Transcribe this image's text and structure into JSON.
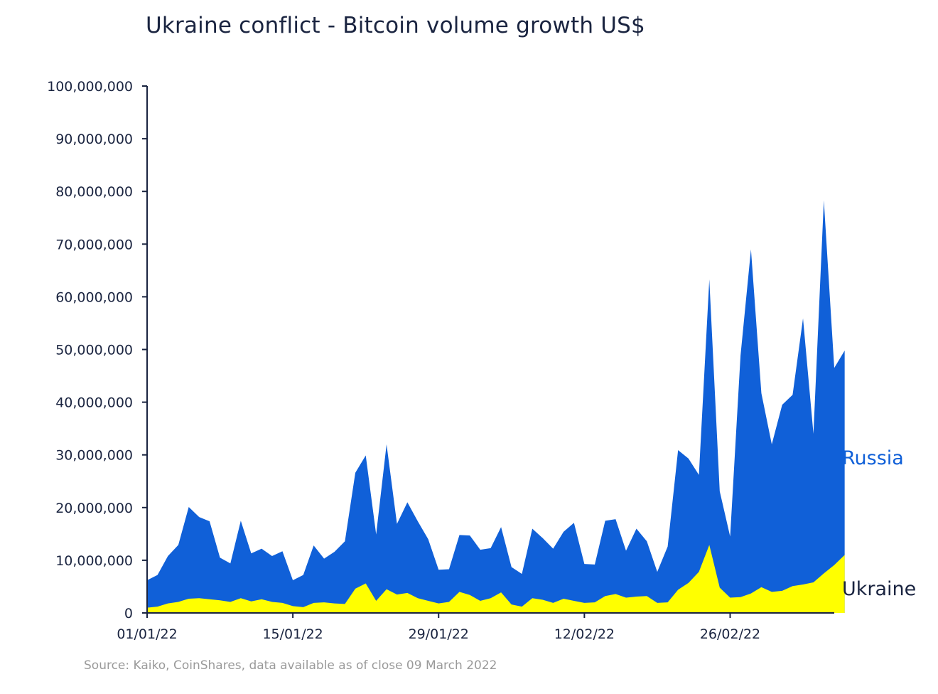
{
  "title": "Ukraine conflict - Bitcoin volume growth US$",
  "source": "Source: Kaiko, CoinShares, data available as of close 09 March 2022",
  "colors": {
    "russia": "#1060d8",
    "ukraine": "#ffff00",
    "axis": "#1a2440",
    "ukraine_label": "#1a2440"
  },
  "chart_data": {
    "type": "area",
    "stacked": true,
    "x_start": "2022-01-01",
    "x_end": "2022-03-08",
    "x_tick_labels": [
      "01/01/22",
      "15/01/22",
      "29/01/22",
      "12/02/22",
      "26/02/22"
    ],
    "x_tick_dates": [
      "2022-01-01",
      "2022-01-15",
      "2022-01-29",
      "2022-02-12",
      "2022-02-26"
    ],
    "y_tick_labels": [
      "0",
      "10,000,000",
      "20,000,000",
      "30,000,000",
      "40,000,000",
      "50,000,000",
      "60,000,000",
      "70,000,000",
      "80,000,000",
      "90,000,000",
      "100,000,000"
    ],
    "ylim": [
      0,
      100000000
    ],
    "grid": false,
    "series": [
      {
        "name": "Ukraine",
        "values": [
          1000000,
          1200000,
          1800000,
          2100000,
          2700000,
          2800000,
          2600000,
          2400000,
          2100000,
          2800000,
          2200000,
          2600000,
          2100000,
          1900000,
          1300000,
          1100000,
          1900000,
          2000000,
          1800000,
          1700000,
          4600000,
          5600000,
          2300000,
          4500000,
          3500000,
          3800000,
          2800000,
          2300000,
          1800000,
          2100000,
          4000000,
          3400000,
          2300000,
          2800000,
          3900000,
          1600000,
          1200000,
          2800000,
          2500000,
          1900000,
          2700000,
          2300000,
          1900000,
          2000000,
          3200000,
          3600000,
          2900000,
          3100000,
          3200000,
          1900000,
          2000000,
          4400000,
          5700000,
          7800000,
          12900000,
          4800000,
          2900000,
          3000000,
          3700000,
          4900000,
          4000000,
          4200000,
          5100000,
          5400000,
          5800000,
          7500000,
          9100000,
          11000000
        ],
        "totals": [
          6200000,
          7200000,
          10800000,
          12900000,
          20100000,
          18200000,
          17400000,
          10500000,
          9400000,
          17500000,
          11300000,
          12200000,
          10800000,
          11700000,
          6200000,
          7200000,
          12800000,
          10300000,
          11600000,
          13600000,
          26600000,
          29900000,
          14900000,
          32000000,
          16900000,
          21000000,
          17400000,
          14000000,
          8200000,
          8300000,
          14800000,
          14700000,
          12000000,
          12300000,
          16300000,
          8700000,
          7400000,
          16000000,
          14200000,
          12200000,
          15400000,
          17100000,
          9300000,
          9200000,
          17500000,
          17800000,
          11800000,
          16000000,
          13600000,
          7800000,
          12600000,
          30900000,
          29300000,
          26200000,
          63300000,
          23100000,
          14500000,
          48900000,
          69000000,
          41700000,
          32000000,
          39500000,
          41400000,
          55900000,
          34000000,
          78300000,
          46500000,
          49800000
        ]
      },
      {
        "name": "Russia",
        "stack_top_of": "totals"
      }
    ]
  }
}
